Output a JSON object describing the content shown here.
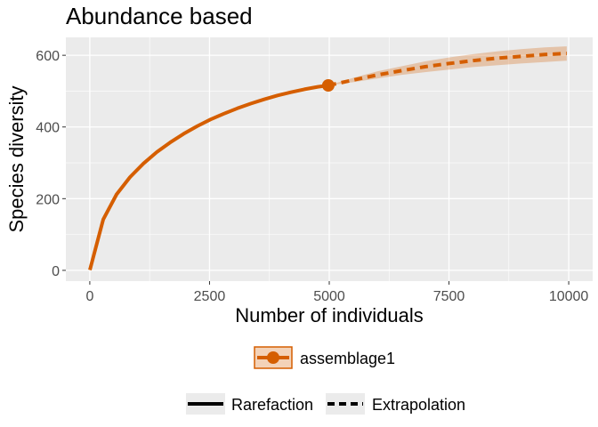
{
  "chart_data": {
    "type": "line",
    "title": "Abundance based",
    "xlabel": "Number of individuals",
    "ylabel": "Species diversity",
    "xlim": [
      -500,
      10500
    ],
    "ylim": [
      -30,
      650
    ],
    "xticks": [
      0,
      2500,
      5000,
      7500,
      10000
    ],
    "xtick_labels": [
      "0",
      "2500",
      "5000",
      "7500",
      "10000"
    ],
    "yticks": [
      0,
      200,
      400,
      600
    ],
    "ytick_labels": [
      "0",
      "200",
      "400",
      "600"
    ],
    "grid": true,
    "legend_position": "bottom",
    "color": "#D55E00",
    "series": [
      {
        "name": "assemblage1",
        "rarefaction": {
          "x": [
            1,
            280,
            560,
            840,
            1120,
            1400,
            1680,
            1960,
            2240,
            2520,
            2800,
            3080,
            3360,
            3640,
            3920,
            4200,
            4480,
            4760,
            4980
          ],
          "y": [
            1,
            142,
            212,
            260,
            298,
            330,
            357,
            381,
            402,
            421,
            437,
            452,
            465,
            477,
            488,
            497,
            505,
            512,
            516
          ]
        },
        "extrapolation": {
          "x": [
            4980,
            5500,
            6000,
            6500,
            7000,
            7500,
            8000,
            8500,
            9000,
            9500,
            9960
          ],
          "y": [
            516,
            531,
            545,
            557,
            568,
            577,
            585,
            592,
            597,
            602,
            605
          ]
        },
        "extrapolation_ci": {
          "lower": [
            516,
            525,
            535,
            545,
            553,
            560,
            567,
            572,
            577,
            581,
            585
          ],
          "upper": [
            516,
            537,
            555,
            569,
            583,
            594,
            603,
            611,
            617,
            622,
            625
          ]
        },
        "observed_point": {
          "x": 4980,
          "y": 516
        }
      }
    ],
    "legend_series": [
      {
        "label": "assemblage1"
      }
    ],
    "legend_method": [
      {
        "label": "Rarefaction",
        "style": "solid"
      },
      {
        "label": "Extrapolation",
        "style": "dashed"
      }
    ]
  }
}
